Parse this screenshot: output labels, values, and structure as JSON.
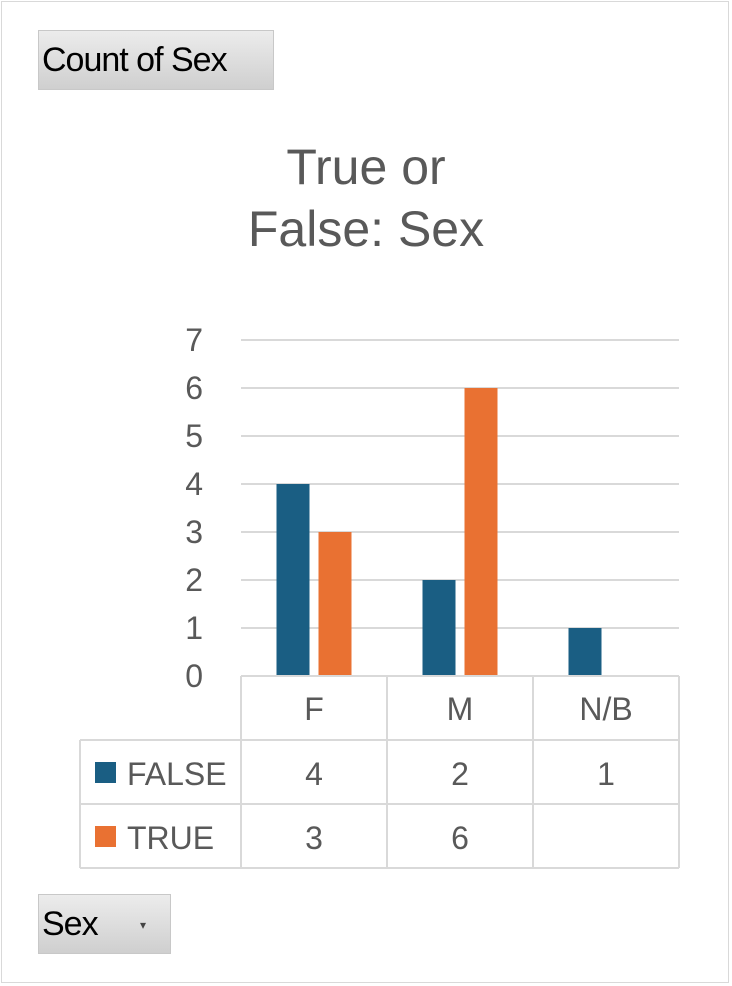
{
  "header": {
    "value_field_label": "Count of Sex"
  },
  "footer": {
    "axis_field_label": "Sex"
  },
  "colors": {
    "false": "#1a5e83",
    "true": "#e97132",
    "grid": "#d9d9d9",
    "text": "#595959"
  },
  "icons": {
    "dropdown": "dropdown-arrow-icon"
  },
  "chart_data": {
    "type": "bar",
    "title_lines": [
      "True or",
      "False: Sex"
    ],
    "categories": [
      "F",
      "M",
      "N/B"
    ],
    "series": [
      {
        "name": "FALSE",
        "values": [
          4,
          2,
          1
        ]
      },
      {
        "name": "TRUE",
        "values": [
          3,
          6,
          null
        ]
      }
    ],
    "ylim": [
      0,
      7
    ],
    "yticks": [
      0,
      1,
      2,
      3,
      4,
      5,
      6,
      7
    ],
    "grid": true,
    "data_table": true
  }
}
